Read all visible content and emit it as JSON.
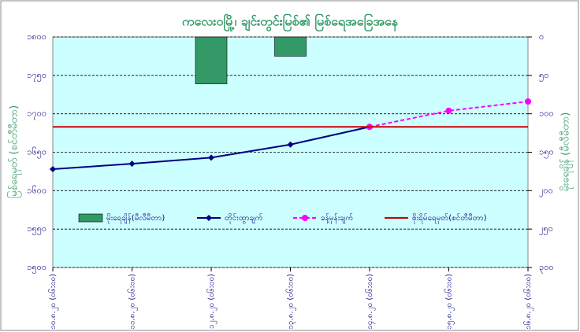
{
  "chart_data": {
    "type": "combo",
    "title": "ကလေးဝမြို့၊ ချင်းတွင်းမြစ်၏ မြစ်ရေအခြေအနေ",
    "y_label": "မြစ်ရေမှတ် (စင်တီမီတာ)",
    "y2_label": "မိုးရေချိန် (မီလီမီတာ)",
    "categories": [
      "၁၀.၈.၂၀ (၀၆:၀၀)",
      "၁၁.၈.၂၀ (၀၆:၀၀)",
      "၁၂.၈.၂၀ (၀၆:၀၀)",
      "၁၃.၈.၂၀ (၀၆:၀၀)",
      "၁၄.၈.၂၀ (၀၆:၀၀)",
      "၁၅.၈.၂၀ (၀၆:၀၀)",
      "၁၆.၈.၂၀ (၀၆:၀၀)"
    ],
    "series": [
      {
        "name": "မိုးရေချိန်(မီလီမီတာ)",
        "kind": "bar",
        "axis": "y2",
        "color": "#339966",
        "values": [
          null,
          null,
          61,
          25,
          null,
          null,
          null
        ]
      },
      {
        "name": "တိုင်းထွာချက်",
        "kind": "line",
        "color": "#000080",
        "marker": "diamond",
        "values": [
          1628,
          1635,
          1643,
          1660,
          1683,
          null,
          null
        ]
      },
      {
        "name": "ခန့်မှန်းချက်",
        "kind": "line",
        "color": "#ff00ff",
        "marker": "circle",
        "dashed": true,
        "values": [
          null,
          null,
          null,
          null,
          1683,
          1704,
          1716
        ]
      },
      {
        "name": "စိုးရိမ်ရေမှတ်(စင်တီမီတာ)",
        "kind": "hline",
        "color": "#cc0000",
        "value": 1683
      }
    ],
    "ylim": [
      1500,
      1800
    ],
    "yticks": [
      {
        "value": 1500,
        "label": "၁၅၀၀"
      },
      {
        "value": 1550,
        "label": "၁၅၅၀"
      },
      {
        "value": 1600,
        "label": "၁၆၀၀"
      },
      {
        "value": 1650,
        "label": "၁၆၅၀"
      },
      {
        "value": 1700,
        "label": "၁၇၀၀"
      },
      {
        "value": 1750,
        "label": "၁၇၅၀"
      },
      {
        "value": 1800,
        "label": "၁၈၀၀"
      }
    ],
    "y2lim": [
      300,
      0
    ],
    "y2ticks": [
      {
        "value": 0,
        "label": "၀"
      },
      {
        "value": 50,
        "label": "၅၀"
      },
      {
        "value": 100,
        "label": "၁၀၀"
      },
      {
        "value": 150,
        "label": "၁၅၀"
      },
      {
        "value": 200,
        "label": "၂၀၀"
      },
      {
        "value": 250,
        "label": "၂၅၀"
      },
      {
        "value": 300,
        "label": "၃၀၀"
      }
    ],
    "grid": true
  }
}
